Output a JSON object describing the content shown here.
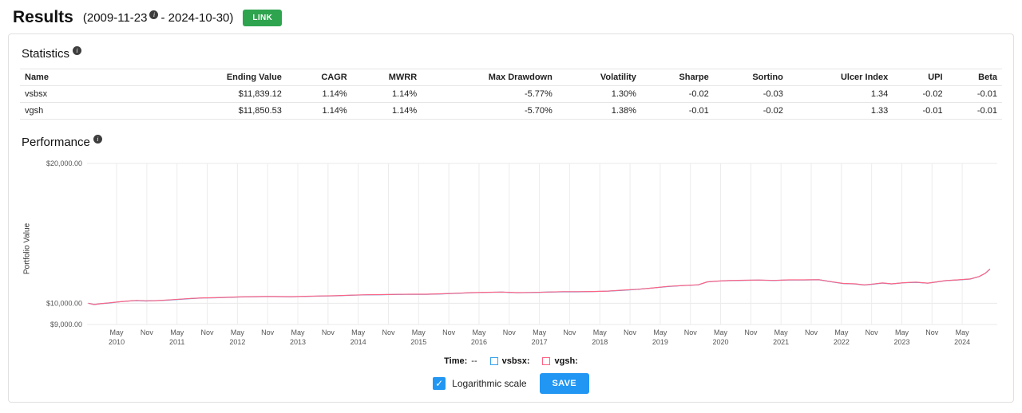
{
  "icons": {
    "info": "i",
    "check": "✓"
  },
  "header": {
    "title": "Results",
    "date_start": "(2009-11-23",
    "date_end": "- 2024-10-30)",
    "link_button": "LINK"
  },
  "statistics": {
    "title": "Statistics",
    "columns": [
      "Name",
      "Ending Value",
      "CAGR",
      "MWRR",
      "Max Drawdown",
      "Volatility",
      "Sharpe",
      "Sortino",
      "Ulcer Index",
      "UPI",
      "Beta"
    ],
    "rows": [
      [
        "vsbsx",
        "$11,839.12",
        "1.14%",
        "1.14%",
        "-5.77%",
        "1.30%",
        "-0.02",
        "-0.03",
        "1.34",
        "-0.02",
        "-0.01"
      ],
      [
        "vgsh",
        "$11,850.53",
        "1.14%",
        "1.14%",
        "-5.70%",
        "1.38%",
        "-0.01",
        "-0.02",
        "1.33",
        "-0.01",
        "-0.01"
      ]
    ]
  },
  "performance": {
    "title": "Performance",
    "legend": {
      "time_label": "Time:",
      "time_value": "--",
      "series1_label": "vsbsx:",
      "series2_label": "vgsh:"
    },
    "log_label": "Logarithmic scale",
    "save_button": "SAVE"
  },
  "chart_data": {
    "type": "line",
    "title": "",
    "xlabel": "",
    "ylabel": "Portfolio Value",
    "y_scale": "log",
    "grid": true,
    "legend_position": "bottom",
    "ylim": [
      9000,
      20000
    ],
    "y_ticks": [
      {
        "value": 20000,
        "label": "$20,000.00"
      },
      {
        "value": 10000,
        "label": "$10,000.00"
      },
      {
        "value": 9000,
        "label": "$9,000.00"
      }
    ],
    "x_range": [
      2009.88,
      2024.95
    ],
    "x_ticks": [
      {
        "t": 2010.37,
        "label": "May",
        "year": "2010"
      },
      {
        "t": 2010.87,
        "label": "Nov"
      },
      {
        "t": 2011.37,
        "label": "May",
        "year": "2011"
      },
      {
        "t": 2011.87,
        "label": "Nov"
      },
      {
        "t": 2012.37,
        "label": "May",
        "year": "2012"
      },
      {
        "t": 2012.87,
        "label": "Nov"
      },
      {
        "t": 2013.37,
        "label": "May",
        "year": "2013"
      },
      {
        "t": 2013.87,
        "label": "Nov"
      },
      {
        "t": 2014.37,
        "label": "May",
        "year": "2014"
      },
      {
        "t": 2014.87,
        "label": "Nov"
      },
      {
        "t": 2015.37,
        "label": "May",
        "year": "2015"
      },
      {
        "t": 2015.87,
        "label": "Nov"
      },
      {
        "t": 2016.37,
        "label": "May",
        "year": "2016"
      },
      {
        "t": 2016.87,
        "label": "Nov"
      },
      {
        "t": 2017.37,
        "label": "May",
        "year": "2017"
      },
      {
        "t": 2017.87,
        "label": "Nov"
      },
      {
        "t": 2018.37,
        "label": "May",
        "year": "2018"
      },
      {
        "t": 2018.87,
        "label": "Nov"
      },
      {
        "t": 2019.37,
        "label": "May",
        "year": "2019"
      },
      {
        "t": 2019.87,
        "label": "Nov"
      },
      {
        "t": 2020.37,
        "label": "May",
        "year": "2020"
      },
      {
        "t": 2020.87,
        "label": "Nov"
      },
      {
        "t": 2021.37,
        "label": "May",
        "year": "2021"
      },
      {
        "t": 2021.87,
        "label": "Nov"
      },
      {
        "t": 2022.37,
        "label": "May",
        "year": "2022"
      },
      {
        "t": 2022.87,
        "label": "Nov"
      },
      {
        "t": 2023.37,
        "label": "May",
        "year": "2023"
      },
      {
        "t": 2023.87,
        "label": "Nov"
      },
      {
        "t": 2024.37,
        "label": "May",
        "year": "2024"
      }
    ],
    "x": [
      2009.9,
      2010.0,
      2010.1,
      2010.25,
      2010.4,
      2010.55,
      2010.7,
      2010.85,
      2011.0,
      2011.2,
      2011.4,
      2011.6,
      2011.8,
      2012.0,
      2012.2,
      2012.4,
      2012.6,
      2012.8,
      2013.0,
      2013.25,
      2013.5,
      2013.75,
      2014.0,
      2014.25,
      2014.5,
      2014.75,
      2015.0,
      2015.25,
      2015.5,
      2015.75,
      2016.0,
      2016.25,
      2016.5,
      2016.75,
      2017.0,
      2017.25,
      2017.5,
      2017.75,
      2018.0,
      2018.25,
      2018.5,
      2018.75,
      2019.0,
      2019.25,
      2019.5,
      2019.75,
      2020.0,
      2020.15,
      2020.3,
      2020.5,
      2020.75,
      2021.0,
      2021.25,
      2021.5,
      2021.75,
      2022.0,
      2022.2,
      2022.4,
      2022.6,
      2022.75,
      2022.9,
      2023.05,
      2023.2,
      2023.4,
      2023.6,
      2023.8,
      2023.95,
      2024.1,
      2024.3,
      2024.5,
      2024.65,
      2024.75,
      2024.83
    ],
    "series": [
      {
        "name": "vsbsx",
        "color": "#36a2eb",
        "ending_value": 11839.12,
        "values": [
          10000,
          9935,
          9975,
          10015,
          10065,
          10105,
          10135,
          10115,
          10125,
          10155,
          10195,
          10235,
          10265,
          10275,
          10295,
          10315,
          10325,
          10335,
          10335,
          10325,
          10345,
          10365,
          10375,
          10405,
          10425,
          10435,
          10445,
          10455,
          10455,
          10475,
          10505,
          10535,
          10555,
          10565,
          10535,
          10545,
          10565,
          10585,
          10585,
          10595,
          10615,
          10665,
          10715,
          10785,
          10865,
          10915,
          10955,
          11115,
          11155,
          11185,
          11205,
          11215,
          11195,
          11225,
          11225,
          11235,
          11125,
          11025,
          11005,
          10945,
          10995,
          11055,
          11005,
          11065,
          11095,
          11045,
          11115,
          11185,
          11225,
          11275,
          11415,
          11595,
          11839
        ]
      },
      {
        "name": "vgsh",
        "color": "#ff6384",
        "ending_value": 11850.53,
        "values": [
          10000,
          9940,
          9980,
          10020,
          10070,
          10110,
          10140,
          10120,
          10130,
          10160,
          10200,
          10240,
          10270,
          10280,
          10300,
          10320,
          10330,
          10340,
          10340,
          10330,
          10350,
          10370,
          10380,
          10410,
          10430,
          10440,
          10450,
          10460,
          10460,
          10480,
          10510,
          10540,
          10560,
          10570,
          10540,
          10550,
          10570,
          10590,
          10590,
          10600,
          10620,
          10670,
          10720,
          10790,
          10870,
          10920,
          10960,
          11120,
          11160,
          11190,
          11210,
          11220,
          11200,
          11230,
          11230,
          11240,
          11130,
          11030,
          11010,
          10950,
          11000,
          11060,
          11010,
          11070,
          11100,
          11050,
          11120,
          11190,
          11230,
          11280,
          11420,
          11600,
          11850
        ]
      }
    ]
  }
}
